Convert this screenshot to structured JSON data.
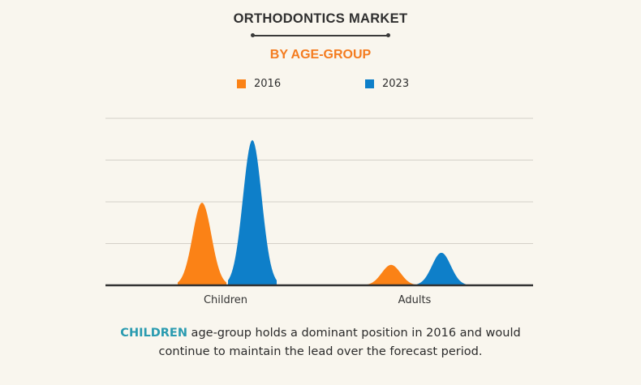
{
  "header": {
    "title": "ORTHODONTICS MARKET",
    "subtitle": "BY AGE-GROUP"
  },
  "legend": [
    {
      "label": "2016",
      "color": "#fb8216"
    },
    {
      "label": "2023",
      "color": "#0e7fc9"
    }
  ],
  "caption": {
    "highlight": "CHILDREN",
    "text": " age-group holds a dominant position in 2016 and would continue to maintain the lead over the forecast period."
  },
  "colors": {
    "background": "#f9f6ee",
    "gridline": "#d4d0c8",
    "baseline": "#333333",
    "accent_orange": "#f47c20",
    "accent_teal": "#2a9bb0"
  },
  "chart_data": {
    "type": "area",
    "title": "ORTHODONTICS MARKET",
    "subtitle": "BY AGE-GROUP",
    "xlabel": "",
    "ylabel": "",
    "categories": [
      "Children",
      "Adults"
    ],
    "series": [
      {
        "name": "2016",
        "color": "#fb8216",
        "values": [
          1.98,
          0.49
        ]
      },
      {
        "name": "2023",
        "color": "#0e7fc9",
        "values": [
          3.48,
          0.78
        ]
      }
    ],
    "value_units": "relative (gridline units, no axis labels shown)",
    "ylim": [
      0,
      4.2
    ],
    "gridlines": [
      1,
      2,
      3,
      4
    ],
    "grid": true,
    "legend_position": "top-center"
  }
}
